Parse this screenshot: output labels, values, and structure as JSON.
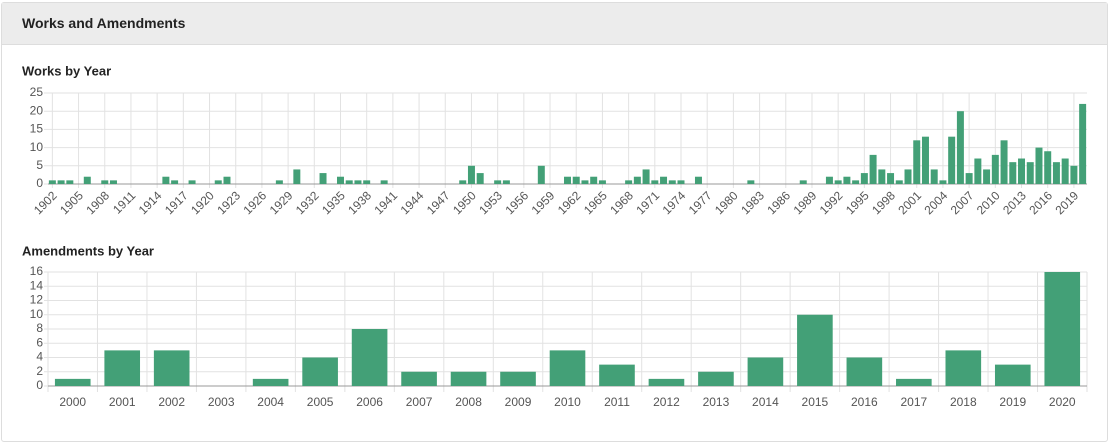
{
  "header": {
    "title": "Works and Amendments"
  },
  "chart_data": [
    {
      "type": "bar",
      "title": "Works by Year",
      "color": "#43a077",
      "grid": true,
      "categories": [
        "1902",
        null,
        null,
        "1905",
        null,
        null,
        "1908",
        null,
        null,
        "1911",
        null,
        null,
        "1914",
        null,
        null,
        "1917",
        null,
        null,
        "1920",
        null,
        null,
        "1923",
        null,
        null,
        "1926",
        null,
        null,
        "1929",
        null,
        null,
        "1932",
        null,
        null,
        "1935",
        null,
        null,
        "1938",
        null,
        null,
        "1941",
        null,
        null,
        "1944",
        null,
        null,
        "1947",
        null,
        null,
        "1950",
        null,
        null,
        "1953",
        null,
        null,
        "1956",
        null,
        null,
        "1959",
        null,
        null,
        "1962",
        null,
        null,
        "1965",
        null,
        null,
        "1968",
        null,
        null,
        "1971",
        null,
        null,
        "1974",
        null,
        null,
        "1977",
        null,
        null,
        "1980",
        null,
        null,
        "1983",
        null,
        null,
        "1986",
        null,
        null,
        "1989",
        null,
        null,
        "1992",
        null,
        null,
        "1995",
        null,
        null,
        "1998",
        null,
        null,
        "2001",
        null,
        null,
        "2004",
        null,
        null,
        "2007",
        null,
        null,
        "2010",
        null,
        null,
        "2013",
        null,
        null,
        "2016",
        null,
        null,
        "2019",
        null
      ],
      "values": [
        1,
        1,
        1,
        0,
        2,
        0,
        1,
        1,
        0,
        0,
        0,
        0,
        0,
        2,
        1,
        0,
        1,
        0,
        0,
        1,
        2,
        0,
        0,
        0,
        0,
        0,
        1,
        0,
        4,
        0,
        0,
        3,
        0,
        2,
        1,
        1,
        1,
        0,
        1,
        0,
        0,
        0,
        0,
        0,
        0,
        0,
        0,
        1,
        5,
        3,
        0,
        1,
        1,
        0,
        0,
        0,
        5,
        0,
        0,
        2,
        2,
        1,
        2,
        1,
        0,
        0,
        1,
        2,
        4,
        1,
        2,
        1,
        1,
        0,
        2,
        0,
        0,
        0,
        0,
        0,
        1,
        0,
        0,
        0,
        0,
        0,
        1,
        0,
        0,
        2,
        1,
        2,
        1,
        3,
        8,
        4,
        3,
        1,
        4,
        12,
        13,
        4,
        1,
        13,
        20,
        3,
        7,
        4,
        8,
        12,
        6,
        7,
        6,
        10,
        9,
        6,
        7,
        5,
        22
      ],
      "ylim": [
        0,
        25
      ],
      "yticks": [
        0,
        5,
        10,
        15,
        20,
        25
      ]
    },
    {
      "type": "bar",
      "title": "Amendments by Year",
      "color": "#43a077",
      "grid": true,
      "categories": [
        "2000",
        "2001",
        "2002",
        "2003",
        "2004",
        "2005",
        "2006",
        "2007",
        "2008",
        "2009",
        "2010",
        "2011",
        "2012",
        "2013",
        "2014",
        "2015",
        "2016",
        "2017",
        "2018",
        "2019",
        "2020"
      ],
      "values": [
        1,
        5,
        5,
        0,
        1,
        4,
        8,
        2,
        2,
        2,
        5,
        3,
        1,
        2,
        4,
        10,
        4,
        1,
        5,
        3,
        16
      ],
      "ylim": [
        0,
        16
      ],
      "yticks": [
        0,
        2,
        4,
        6,
        8,
        10,
        12,
        14,
        16
      ]
    }
  ]
}
